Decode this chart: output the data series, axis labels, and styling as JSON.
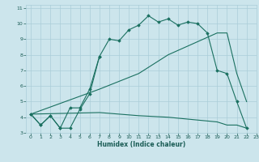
{
  "title": "",
  "xlabel": "Humidex (Indice chaleur)",
  "xlim": [
    -0.5,
    23
  ],
  "ylim": [
    3,
    11.2
  ],
  "yticks": [
    3,
    4,
    5,
    6,
    7,
    8,
    9,
    10,
    11
  ],
  "xticks": [
    0,
    1,
    2,
    3,
    4,
    5,
    6,
    7,
    8,
    9,
    10,
    11,
    12,
    13,
    14,
    15,
    16,
    17,
    18,
    19,
    20,
    21,
    22,
    23
  ],
  "bg_color": "#cce5ec",
  "grid_color": "#aacdd8",
  "line_color": "#1a7060",
  "line1_x": [
    0,
    1,
    2,
    3,
    4,
    5,
    6,
    7,
    8,
    9,
    10,
    11,
    12,
    13,
    14,
    15,
    16,
    17,
    18,
    19,
    20,
    21,
    22
  ],
  "line1_y": [
    4.2,
    3.5,
    4.1,
    3.3,
    3.3,
    4.5,
    5.5,
    7.9,
    9.0,
    8.9,
    9.6,
    9.9,
    10.5,
    10.1,
    10.3,
    9.9,
    10.1,
    10.0,
    9.4,
    7.0,
    6.8,
    5.0,
    3.3
  ],
  "line2_x": [
    0,
    1,
    2,
    3,
    4,
    5,
    6,
    7
  ],
  "line2_y": [
    4.2,
    3.5,
    4.1,
    3.3,
    4.6,
    4.6,
    5.8,
    7.9
  ],
  "line3_x": [
    0,
    7,
    11,
    14,
    19,
    20,
    21,
    22
  ],
  "line3_y": [
    4.2,
    5.8,
    6.8,
    8.0,
    9.4,
    9.4,
    6.8,
    5.0
  ],
  "line4_x": [
    0,
    7,
    11,
    14,
    19,
    20,
    21,
    22
  ],
  "line4_y": [
    4.2,
    4.3,
    4.1,
    4.0,
    3.7,
    3.5,
    3.5,
    3.3
  ]
}
